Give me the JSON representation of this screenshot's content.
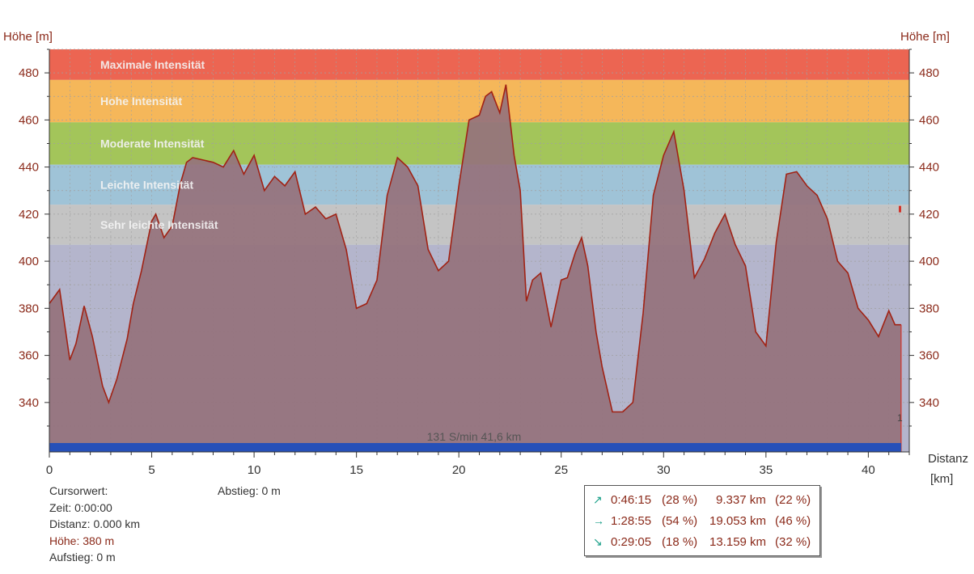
{
  "colors": {
    "zone_max": "#ec6552",
    "zone_high": "#f5b75a",
    "zone_moderate": "#a3c55a",
    "zone_light": "#9fc3d7",
    "zone_very_light": "#c4c4c4",
    "zone_none": "#b4b5cc",
    "area_fill": "#95727c",
    "area_line": "#a12214",
    "bottom_band": "#2650b8",
    "axis_text": "#8b2a1a"
  },
  "axes": {
    "y_left_title": "Höhe [m]",
    "y_right_title": "Höhe [m]",
    "x_title_line1": "Distanz",
    "x_title_line2": "[km]",
    "y_ticks": [
      "340",
      "360",
      "380",
      "400",
      "420",
      "440",
      "460",
      "480"
    ],
    "x_ticks": [
      "0",
      "5",
      "10",
      "15",
      "20",
      "25",
      "30",
      "35",
      "40"
    ]
  },
  "bottom_label": "131 S/min 41,6 km",
  "marker_label": "1",
  "info": {
    "cursor_label": "Cursorwert:",
    "time": "Zeit: 0:00:00",
    "distance": "Distanz: 0.000 km",
    "height": "Höhe:  380 m",
    "ascent": "Aufstieg: 0 m",
    "descent": "Abstieg: 0 m"
  },
  "stats": [
    {
      "icon": "arrow-up-right-icon",
      "arrow": "↗",
      "time": "0:46:15",
      "time_pct": "(28 %)",
      "dist": "9.337 km",
      "dist_pct": "(22 %)"
    },
    {
      "icon": "arrow-right-icon",
      "arrow": "→",
      "time": "1:28:55",
      "time_pct": "(54 %)",
      "dist": "19.053 km",
      "dist_pct": "(46 %)"
    },
    {
      "icon": "arrow-down-right-icon",
      "arrow": "↘",
      "time": "0:29:05",
      "time_pct": "(18 %)",
      "dist": "13.159 km",
      "dist_pct": "(32 %)"
    }
  ],
  "chart_data": {
    "type": "area",
    "xlabel": "Distanz [km]",
    "ylabel": "Höhe [m]",
    "xlim": [
      0,
      42
    ],
    "ylim": [
      319,
      490
    ],
    "zones": [
      {
        "label": "Maximale Intensität",
        "from": 477,
        "to": 490
      },
      {
        "label": "Hohe Intensität",
        "from": 459,
        "to": 477
      },
      {
        "label": "Moderate Intensität",
        "from": 441,
        "to": 459
      },
      {
        "label": "Leichte Intensität",
        "from": 424,
        "to": 441
      },
      {
        "label": "Sehr leichte Intensität",
        "from": 407,
        "to": 424
      }
    ],
    "x": [
      0,
      0.5,
      1,
      1.3,
      1.7,
      2.1,
      2.6,
      2.9,
      3.3,
      3.8,
      4.1,
      4.5,
      5,
      5.2,
      5.6,
      6,
      6.4,
      6.7,
      7,
      8,
      8.5,
      9,
      9.5,
      10,
      10.5,
      11,
      11.5,
      12,
      12.5,
      13,
      13.5,
      14,
      14.5,
      15,
      15.5,
      16,
      16.5,
      17,
      17.5,
      18,
      18.5,
      19,
      19.5,
      20,
      20.5,
      21,
      21.3,
      21.6,
      22,
      22.3,
      22.7,
      23,
      23.3,
      23.6,
      24,
      24.5,
      25,
      25.3,
      25.7,
      26,
      26.3,
      26.7,
      27,
      27.5,
      28,
      28.5,
      29,
      29.5,
      30,
      30.5,
      31,
      31.5,
      32,
      32.5,
      33,
      33.5,
      34,
      34.5,
      35,
      35.5,
      36,
      36.5,
      37,
      37.5,
      38,
      38.5,
      39,
      39.5,
      40,
      40.5,
      41,
      41.3,
      41.6
    ],
    "y": [
      382,
      388,
      358,
      365,
      381,
      368,
      347,
      340,
      350,
      367,
      382,
      396,
      417,
      420,
      410,
      415,
      433,
      442,
      444,
      442,
      440,
      447,
      437,
      445,
      430,
      436,
      432,
      438,
      420,
      423,
      418,
      420,
      405,
      380,
      382,
      392,
      428,
      444,
      440,
      432,
      405,
      396,
      400,
      432,
      460,
      462,
      470,
      472,
      463,
      475,
      445,
      430,
      383,
      392,
      395,
      372,
      392,
      393,
      404,
      410,
      398,
      370,
      355,
      336,
      336,
      340,
      378,
      428,
      445,
      455,
      430,
      393,
      401,
      412,
      420,
      407,
      398,
      370,
      364,
      408,
      437,
      438,
      432,
      428,
      418,
      400,
      395,
      380,
      375,
      368,
      379,
      373,
      373
    ]
  }
}
